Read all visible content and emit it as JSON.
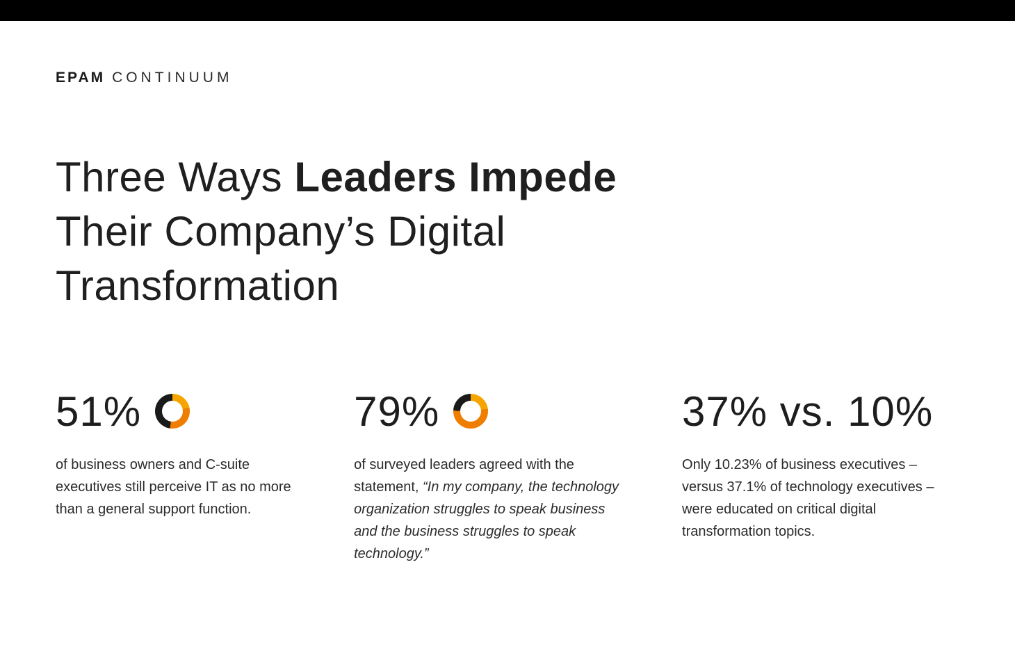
{
  "logo": {
    "primary": "EPAM",
    "secondary": "CONTINUUM"
  },
  "heading": {
    "line1_light": "Three Ways ",
    "line1_bold": "Leaders Impede",
    "line2": "Their Company’s Digital",
    "line3": "Transformation"
  },
  "stats": [
    {
      "value": "51%",
      "donut_icon": "donut-ring-51",
      "text": "of business owners and C-suite executives still perceive IT as no more than a general support function.",
      "quote": ""
    },
    {
      "value": "79%",
      "donut_icon": "donut-ring-79",
      "text": "of surveyed leaders agreed with the statement, ",
      "quote": "“In my company, the technology organization struggles to speak business and the business struggles to speak technology.”"
    },
    {
      "value": "37% vs. 10%",
      "donut_icon": "",
      "text": "Only 10.23% of business executives – versus 37.1% of technology executives – were educated on critical digital transformation topics.",
      "quote": ""
    }
  ],
  "colors": {
    "black": "#1a1a1a",
    "orange": "#ef7d00",
    "amber": "#f6a500"
  }
}
